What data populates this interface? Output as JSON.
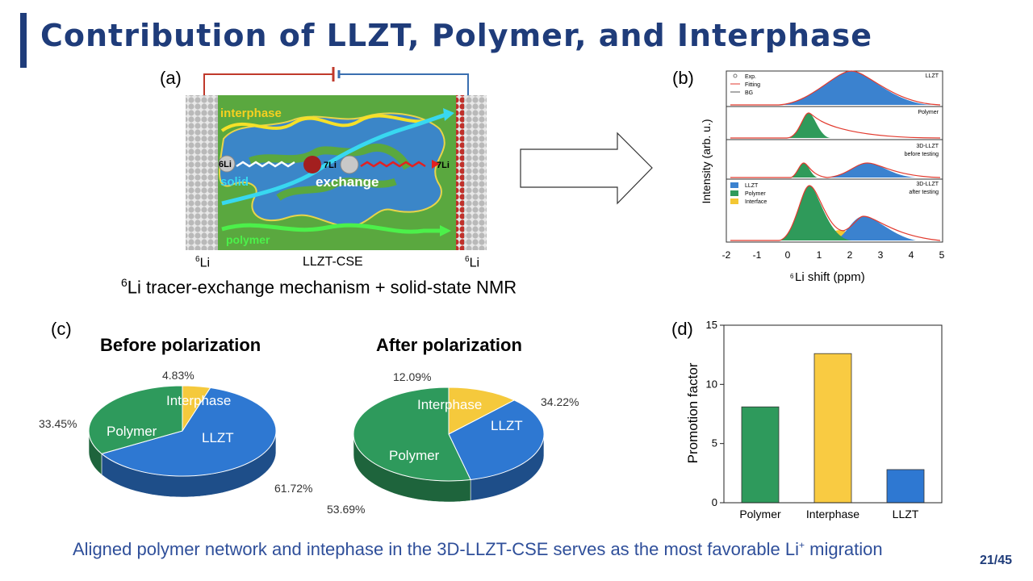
{
  "title": "Contribution of LLZT, Polymer, and Interphase",
  "panel_labels": {
    "a": "(a)",
    "b": "(b)",
    "c": "(c)",
    "d": "(d)"
  },
  "panel_a": {
    "interphase_label": "interphase",
    "solid_label": "solid",
    "exchange_label": "exchange",
    "polymer_label": "polymer",
    "li6_left": "6Li",
    "li7_mid": "7Li",
    "li7_right": "7Li",
    "bottom_left": "Li",
    "bottom_center": "LLZT-CSE",
    "bottom_right": "Li",
    "mass_number": "6",
    "caption": "Li tracer-exchange mechanism + solid-state NMR",
    "caption_sup": "6",
    "colors": {
      "green": "#5aa83f",
      "cyan": "#38d8f0",
      "blue": "#3b86c8",
      "yellow": "#f5e028",
      "red": "#d8241f"
    }
  },
  "panel_b": {
    "ylabel": "Intensity (arb. u.)",
    "xlabel": "Li shift (ppm)",
    "xlabel_sup": "6",
    "xticks": [
      "-2",
      "-1",
      "0",
      "1",
      "2",
      "3",
      "4",
      "5"
    ],
    "legend_top": [
      "Exp.",
      "Fitting",
      "BG"
    ],
    "legend_bottom": [
      "LLZT",
      "Polymer",
      "Interface"
    ],
    "traces": [
      {
        "label": "LLZT",
        "label2": ""
      },
      {
        "label": "Polymer",
        "label2": ""
      },
      {
        "label": "3D-LLZT",
        "label2": "before testing"
      },
      {
        "label": "3D-LLZT",
        "label2": "after testing"
      }
    ]
  },
  "panel_c": {
    "before": {
      "title": "Before polarization",
      "slices": [
        {
          "name": "LLZT",
          "value": 61.72,
          "label": "61.72%",
          "color": "#2e78d2"
        },
        {
          "name": "Polymer",
          "value": 33.45,
          "label": "33.45%",
          "color": "#2e9a5c"
        },
        {
          "name": "Interphase",
          "value": 4.83,
          "label": "4.83%",
          "color": "#f5c93c"
        }
      ]
    },
    "after": {
      "title": "After polarization",
      "slices": [
        {
          "name": "LLZT",
          "value": 34.22,
          "label": "34.22%",
          "color": "#2e78d2"
        },
        {
          "name": "Polymer",
          "value": 53.69,
          "label": "53.69%",
          "color": "#2e9a5c"
        },
        {
          "name": "Interphase",
          "value": 12.09,
          "label": "12.09%",
          "color": "#f5c93c"
        }
      ]
    }
  },
  "chart_data": {
    "type": "bar",
    "categories": [
      "Polymer",
      "Interphase",
      "LLZT"
    ],
    "values": [
      8.1,
      12.6,
      2.8
    ],
    "colors": [
      "#2e9a5c",
      "#f9cb42",
      "#2e78d2"
    ],
    "ylabel": "Promotion factor",
    "ylim": [
      0,
      15
    ],
    "yticks": [
      "0",
      "5",
      "10",
      "15"
    ]
  },
  "footer": {
    "text": "Aligned polymer network and intephase in the 3D-LLZT-CSE serves as the most favorable Li",
    "sup": "+",
    "tail": " migration"
  },
  "page": "21/45"
}
